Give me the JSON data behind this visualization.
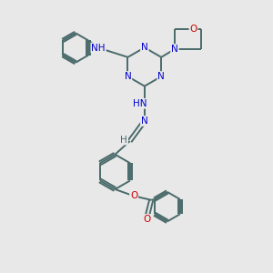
{
  "bg_color": "#e8e8e8",
  "bond_color": "#4a6a6a",
  "N_color": "#0000cc",
  "O_color": "#cc0000",
  "C_color": "#4a6a6a",
  "line_width": 1.4,
  "figsize": [
    3.0,
    3.0
  ],
  "dpi": 100,
  "xlim": [
    0,
    10
  ],
  "ylim": [
    0,
    10
  ]
}
